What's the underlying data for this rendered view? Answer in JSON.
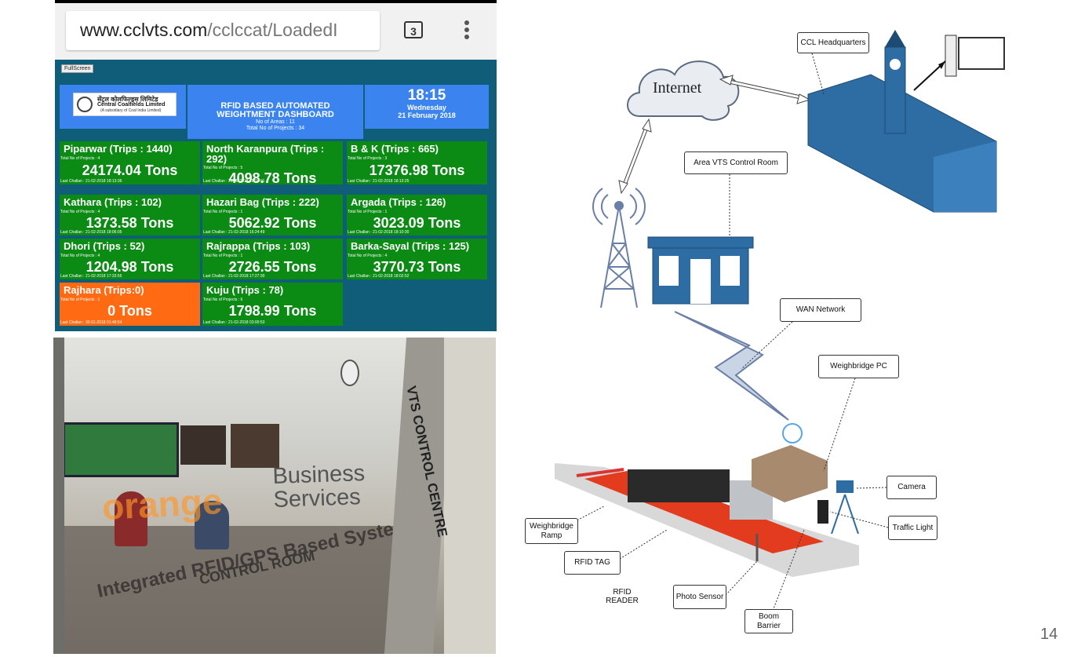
{
  "browser": {
    "url_host": "www.cclvts.com",
    "url_path": "/cclccat/LoadedI",
    "tab_count": "3"
  },
  "dashboard": {
    "fullscreen_label": "FullScreen",
    "logo_hindi": "सेंट्रल कोलफिल्ड्स लिमिटेड",
    "logo_name": "Central Coalfields Limited",
    "logo_sub": "(A subsidiary of Coal India Limited)",
    "title_line1": "RFID BASED AUTOMATED",
    "title_line2": "WEIGHTMENT DASHBOARD",
    "areas": "No of Areas : 11",
    "projects": "Total No of Projects : 34",
    "time": "18:15",
    "weekday": "Wednesday",
    "date": "21 February 2018",
    "tiles": [
      {
        "name": "Piparwar  (Trips : 1440)",
        "projects": "Total No of Projects : 4",
        "tons": "24174.04 Tons",
        "last": "Last Challan : 21-02-2018 18:13:36",
        "status": "green"
      },
      {
        "name": "North Karanpura  (Trips : 292)",
        "projects": "Total No of Projects : 5",
        "tons": "4098.78 Tons",
        "last": "Last Challan : 21-02-2018 18:14:01",
        "status": "green"
      },
      {
        "name": "B & K  (Trips : 665)",
        "projects": "Total No of Projects : 3",
        "tons": "17376.98 Tons",
        "last": "Last Challan : 21-02-2018 18:13:25",
        "status": "green"
      },
      {
        "name": "Kathara  (Trips : 102)",
        "projects": "Total No of Projects : 4",
        "tons": "1373.58 Tons",
        "last": "Last Challan : 21-02-2018 18:06:05",
        "status": "green"
      },
      {
        "name": "Hazari Bag  (Trips : 222)",
        "projects": "Total No of Projects : 1",
        "tons": "5062.92 Tons",
        "last": "Last Challan : 21-02-2018 16:24:49",
        "status": "green"
      },
      {
        "name": "Argada  (Trips : 126)",
        "projects": "Total No of Projects : 1",
        "tons": "3023.09 Tons",
        "last": "Last Challan : 21-02-2018 18:10:30",
        "status": "green"
      },
      {
        "name": "Dhori  (Trips : 52)",
        "projects": "Total No of Projects : 4",
        "tons": "1204.98 Tons",
        "last": "Last Challan : 21-02-2018 17:33:55",
        "status": "green"
      },
      {
        "name": "Rajrappa  (Trips : 103)",
        "projects": "Total No of Projects : 1",
        "tons": "2726.55 Tons",
        "last": "Last Challan : 21-02-2018 17:27:30",
        "status": "green"
      },
      {
        "name": "Barka-Sayal  (Trips : 125)",
        "projects": "Total No of Projects : 4",
        "tons": "3770.73 Tons",
        "last": "Last Challan : 21-02-2018 18:02:52",
        "status": "green"
      },
      {
        "name": "Rajhara  (Trips:0)",
        "projects": "Total No of Projects : 1",
        "tons": "0 Tons",
        "last": "Last Challan : 30-01-2018 01:48:54",
        "status": "orange"
      },
      {
        "name": "Kuju  (Trips : 78)",
        "projects": "Total No of Projects : 6",
        "tons": "1798.99 Tons",
        "last": "Last Challan : 21-02-2018 03:00:53",
        "status": "green"
      }
    ]
  },
  "photo": {
    "sign_business": "Business",
    "sign_services": "Services",
    "sign_integrated": "Integrated RFID/GPS Based System",
    "sign_control": "CONTROL ROOM",
    "sign_orange": "orange",
    "sign_vts": "VTS CONTROL CENTRE"
  },
  "diagram": {
    "internet": "Internet",
    "ccl_hq": "CCL Headquarters",
    "area_vts": "Area VTS Control Room",
    "wan": "WAN Network",
    "weighbridge_pc": "Weighbridge PC",
    "camera": "Camera",
    "traffic_light": "Traffic Light",
    "weighbridge_ramp_1": "Weighbridge",
    "weighbridge_ramp_2": "Ramp",
    "rfid_tag": "RFID TAG",
    "rfid_reader_1": "RFID",
    "rfid_reader_2": "READER",
    "photo_sensor": "Photo Sensor",
    "boom_barrier_1": "Boom",
    "boom_barrier_2": "Barrier"
  },
  "page_number": "14",
  "colors": {
    "dash_bg": "#0f5d78",
    "header_blue": "#3b84f0",
    "tile_green": "#0b8a14",
    "tile_orange": "#ff6a13",
    "building_blue": "#2d6da3"
  }
}
